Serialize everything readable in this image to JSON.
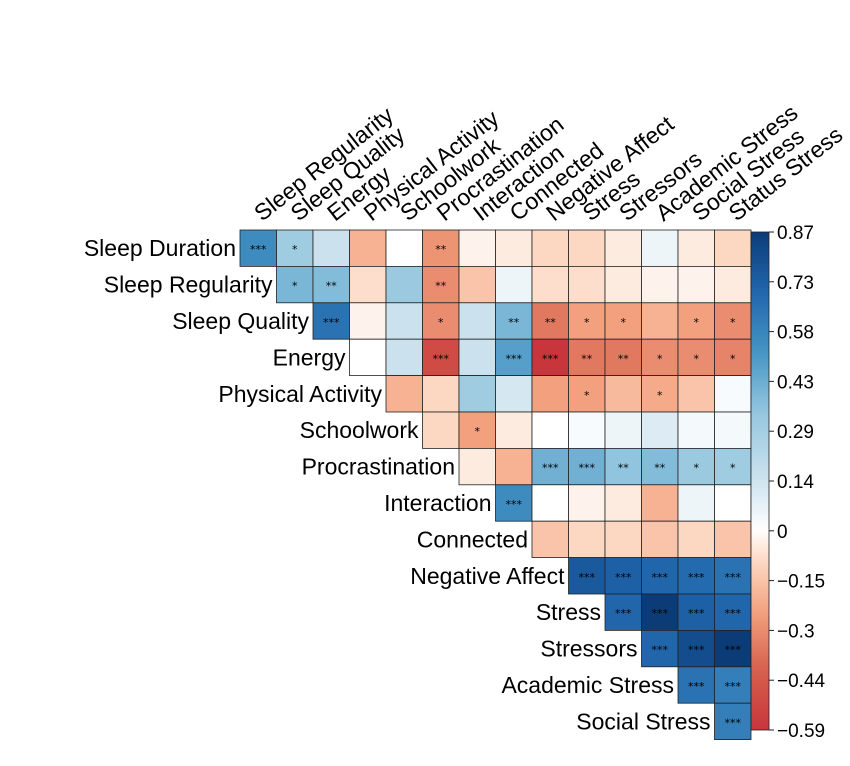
{
  "chart_data": {
    "type": "heatmap",
    "title": "",
    "row_labels": [
      "Sleep Duration",
      "Sleep Regularity",
      "Sleep Quality",
      "Energy",
      "Physical Activity",
      "Schoolwork",
      "Procrastination",
      "Interaction",
      "Connected",
      "Negative Affect",
      "Stress",
      "Stressors",
      "Academic Stress",
      "Social Stress"
    ],
    "col_labels": [
      "Sleep Regularity",
      "Sleep Quality",
      "Energy",
      "Physical Activity",
      "Schoolwork",
      "Procrastination",
      "Interaction",
      "Connected",
      "Negative Affect",
      "Stress",
      "Stressors",
      "Academic Stress",
      "Social Stress",
      "Status Stress"
    ],
    "values": [
      [
        0.55,
        0.3,
        0.15,
        -0.2,
        0.0,
        -0.28,
        -0.03,
        -0.05,
        -0.1,
        -0.1,
        -0.05,
        0.05,
        -0.05,
        -0.1
      ],
      [
        null,
        0.4,
        0.38,
        -0.08,
        0.32,
        -0.3,
        -0.15,
        0.05,
        -0.08,
        -0.08,
        -0.05,
        -0.03,
        -0.03,
        -0.05
      ],
      [
        null,
        null,
        0.65,
        -0.03,
        0.15,
        -0.3,
        0.15,
        0.4,
        -0.35,
        -0.25,
        -0.25,
        -0.2,
        -0.25,
        -0.3
      ],
      [
        null,
        null,
        null,
        0.0,
        0.15,
        -0.5,
        0.15,
        0.48,
        -0.59,
        -0.35,
        -0.35,
        -0.3,
        -0.3,
        -0.32
      ],
      [
        null,
        null,
        null,
        null,
        -0.2,
        -0.1,
        0.3,
        0.12,
        -0.25,
        -0.25,
        -0.18,
        -0.22,
        -0.15,
        0.02
      ],
      [
        null,
        null,
        null,
        null,
        null,
        -0.1,
        -0.25,
        -0.05,
        0.0,
        0.02,
        0.05,
        0.1,
        0.03,
        0.03
      ],
      [
        null,
        null,
        null,
        null,
        null,
        null,
        -0.05,
        -0.2,
        0.42,
        0.42,
        0.35,
        0.38,
        0.32,
        0.3
      ],
      [
        null,
        null,
        null,
        null,
        null,
        null,
        null,
        0.55,
        0.0,
        -0.03,
        -0.05,
        -0.2,
        0.05,
        0.0
      ],
      [
        null,
        null,
        null,
        null,
        null,
        null,
        null,
        null,
        -0.15,
        -0.1,
        -0.1,
        -0.15,
        -0.1,
        -0.15
      ],
      [
        null,
        null,
        null,
        null,
        null,
        null,
        null,
        null,
        null,
        0.75,
        0.72,
        0.7,
        0.68,
        0.65
      ],
      [
        null,
        null,
        null,
        null,
        null,
        null,
        null,
        null,
        null,
        null,
        0.7,
        0.87,
        0.72,
        0.7
      ],
      [
        null,
        null,
        null,
        null,
        null,
        null,
        null,
        null,
        null,
        null,
        null,
        0.7,
        0.8,
        0.87
      ],
      [
        null,
        null,
        null,
        null,
        null,
        null,
        null,
        null,
        null,
        null,
        null,
        null,
        0.65,
        0.6
      ],
      [
        null,
        null,
        null,
        null,
        null,
        null,
        null,
        null,
        null,
        null,
        null,
        null,
        null,
        0.6
      ]
    ],
    "significance": [
      [
        "***",
        "*",
        "",
        "",
        "",
        "**",
        "",
        "",
        "",
        "",
        "",
        "",
        "",
        ""
      ],
      [
        "",
        "*",
        "**",
        "",
        "",
        "**",
        "",
        "",
        "",
        "",
        "",
        "",
        "",
        ""
      ],
      [
        "",
        "",
        "***",
        "",
        "",
        "*",
        "",
        "**",
        "**",
        "*",
        "*",
        "",
        "*",
        "*"
      ],
      [
        "",
        "",
        "",
        "",
        "",
        "***",
        "",
        "***",
        "***",
        "**",
        "**",
        "*",
        "*",
        "*"
      ],
      [
        "",
        "",
        "",
        "",
        "",
        "",
        "",
        "",
        "",
        "*",
        "",
        "*",
        "",
        ""
      ],
      [
        "",
        "",
        "",
        "",
        "",
        "",
        "*",
        "",
        "",
        "",
        "",
        "",
        "",
        ""
      ],
      [
        "",
        "",
        "",
        "",
        "",
        "",
        "",
        "",
        "***",
        "***",
        "**",
        "**",
        "*",
        "*"
      ],
      [
        "",
        "",
        "",
        "",
        "",
        "",
        "",
        "***",
        "",
        "",
        "",
        "",
        "",
        ""
      ],
      [
        "",
        "",
        "",
        "",
        "",
        "",
        "",
        "",
        "",
        "",
        "",
        "",
        "",
        ""
      ],
      [
        "",
        "",
        "",
        "",
        "",
        "",
        "",
        "",
        "",
        "***",
        "***",
        "***",
        "***",
        "***"
      ],
      [
        "",
        "",
        "",
        "",
        "",
        "",
        "",
        "",
        "",
        "",
        "***",
        "***",
        "***",
        "***"
      ],
      [
        "",
        "",
        "",
        "",
        "",
        "",
        "",
        "",
        "",
        "",
        "",
        "***",
        "***",
        "***"
      ],
      [
        "",
        "",
        "",
        "",
        "",
        "",
        "",
        "",
        "",
        "",
        "",
        "",
        "***",
        "***"
      ],
      [
        "",
        "",
        "",
        "",
        "",
        "",
        "",
        "",
        "",
        "",
        "",
        "",
        "",
        "***"
      ]
    ],
    "value_range": [
      -0.59,
      0.87
    ],
    "colorbar_ticks": [
      "0.87",
      "0.73",
      "0.58",
      "0.43",
      "0.29",
      "0.14",
      "0",
      "−0.15",
      "−0.3",
      "−0.44",
      "−0.59"
    ],
    "colors": {
      "high": "#0c3c78",
      "mid": "#ffffff",
      "low": "#c8363b"
    },
    "grid": true,
    "legend": "colorbar-right"
  }
}
